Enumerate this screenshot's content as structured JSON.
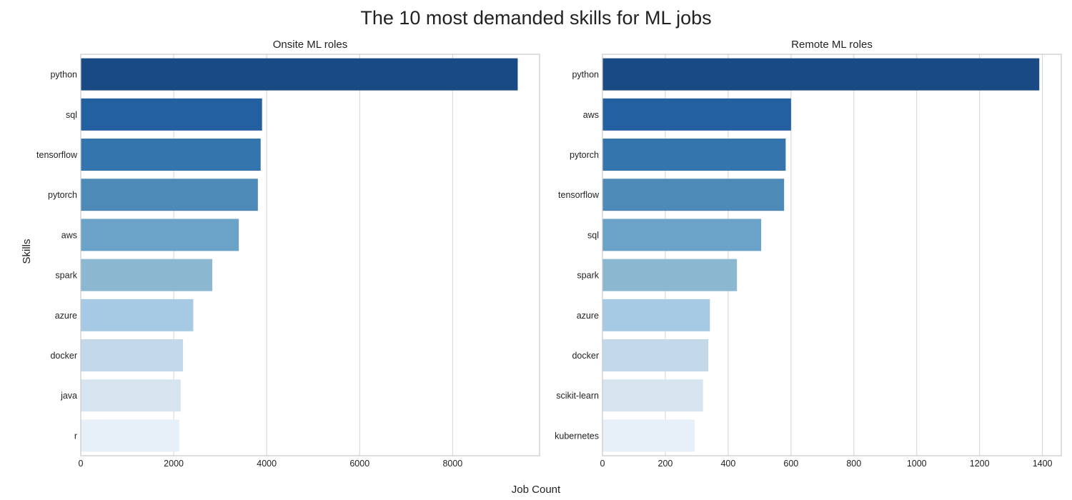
{
  "figure": {
    "title": "The 10 most demanded skills for ML jobs",
    "ylabel": "Skills",
    "xlabel": "Job Count"
  },
  "chart_data": [
    {
      "type": "bar",
      "orientation": "horizontal",
      "title": "Onsite ML roles",
      "xlabel": "",
      "ylabel": "",
      "categories": [
        "python",
        "sql",
        "tensorflow",
        "pytorch",
        "aws",
        "spark",
        "azure",
        "docker",
        "java",
        "r"
      ],
      "values": [
        9400,
        3900,
        3870,
        3810,
        3400,
        2830,
        2420,
        2200,
        2150,
        2120
      ],
      "xlim": [
        0,
        9870
      ],
      "xticks": [
        0,
        2000,
        4000,
        6000,
        8000
      ],
      "grid": true,
      "colors": [
        "#1a4a83",
        "#2360a0",
        "#3475ad",
        "#4e8ab8",
        "#6aa2c8",
        "#8bb7d1",
        "#a6cae3",
        "#c3d8e9",
        "#d6e4f0",
        "#e7f0f8"
      ]
    },
    {
      "type": "bar",
      "orientation": "horizontal",
      "title": "Remote ML roles",
      "xlabel": "",
      "ylabel": "",
      "categories": [
        "python",
        "aws",
        "pytorch",
        "tensorflow",
        "sql",
        "spark",
        "azure",
        "docker",
        "scikit-learn",
        "kubernetes"
      ],
      "values": [
        1390,
        600,
        583,
        578,
        505,
        428,
        342,
        337,
        320,
        293
      ],
      "xlim": [
        0,
        1460
      ],
      "xticks": [
        0,
        200,
        400,
        600,
        800,
        1000,
        1200,
        1400
      ],
      "grid": true,
      "colors": [
        "#1a4a83",
        "#2360a0",
        "#3475ad",
        "#4e8ab8",
        "#6aa2c8",
        "#8bb7d1",
        "#a6cae3",
        "#c3d8e9",
        "#d6e4f0",
        "#e7f0f8"
      ]
    }
  ]
}
